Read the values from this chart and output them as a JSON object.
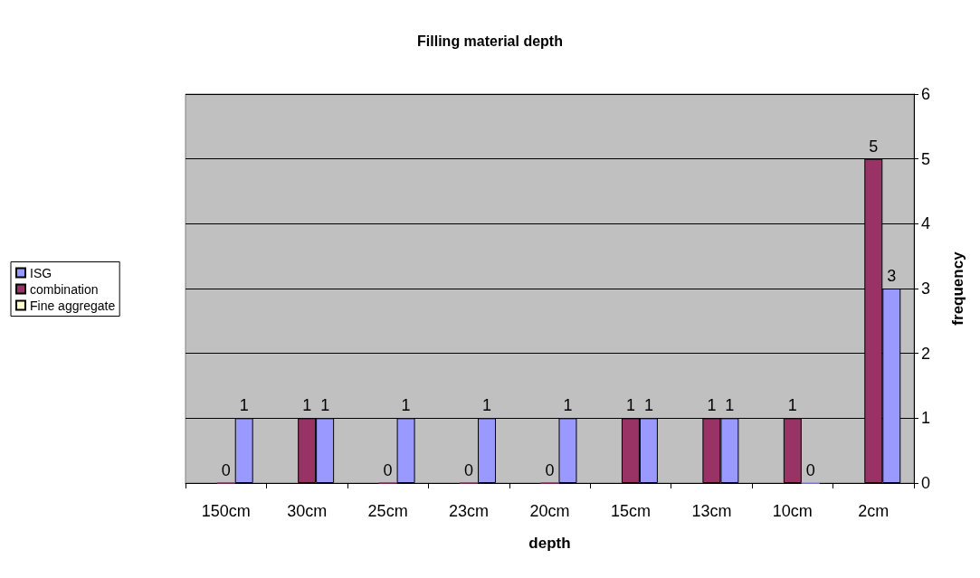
{
  "chart_data": {
    "type": "bar",
    "title": "Filling material depth",
    "xlabel": "depth",
    "ylabel": "frequency",
    "categories": [
      "150cm",
      "30cm",
      "25cm",
      "23cm",
      "20cm",
      "15cm",
      "13cm",
      "10cm",
      "2cm"
    ],
    "series": [
      {
        "name": "Fine aggregate",
        "color": "#ffffcc",
        "values": [
          null,
          null,
          null,
          null,
          null,
          null,
          null,
          null,
          null
        ]
      },
      {
        "name": "combination",
        "color": "#993366",
        "values": [
          0,
          1,
          0,
          0,
          0,
          1,
          1,
          1,
          5
        ]
      },
      {
        "name": "ISG",
        "color": "#9999ff",
        "values": [
          1,
          1,
          1,
          1,
          1,
          1,
          1,
          0,
          3
        ]
      }
    ],
    "ylim": [
      0,
      6
    ],
    "yticks": [
      0,
      1,
      2,
      3,
      4,
      5,
      6
    ],
    "grid": "y",
    "legend": "left",
    "data_labels": true
  }
}
